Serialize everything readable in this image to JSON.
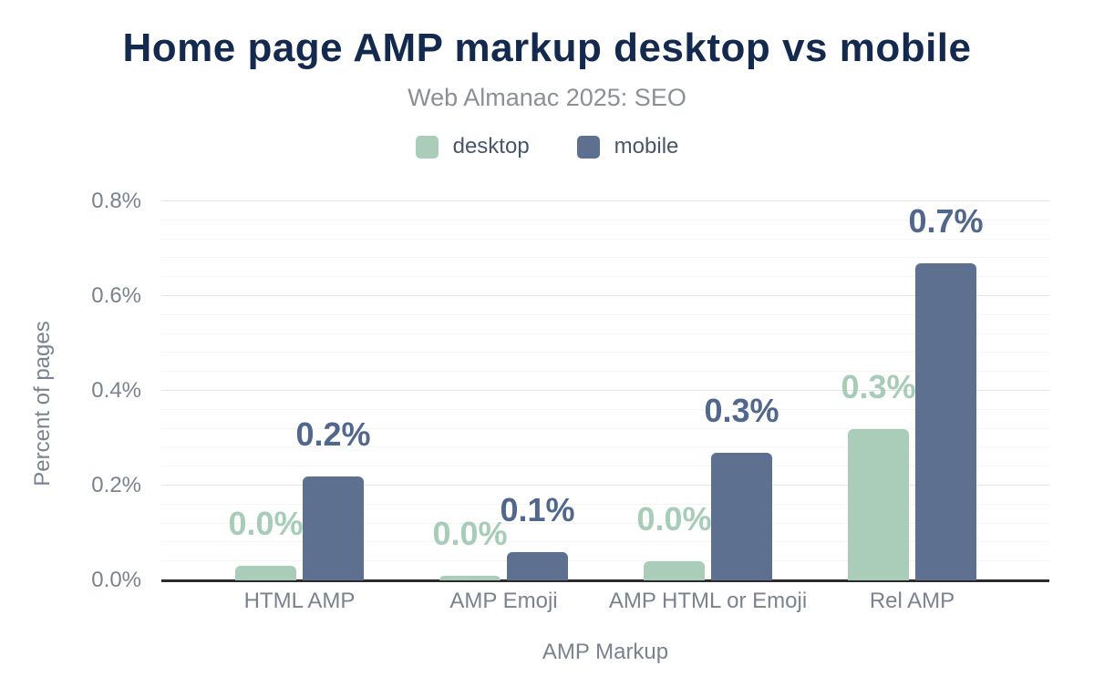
{
  "chart_data": {
    "type": "bar",
    "title": "Home page AMP markup desktop vs mobile",
    "subtitle": "Web Almanac 2025: SEO",
    "xlabel": "AMP Markup",
    "ylabel": "Percent of pages",
    "categories": [
      "HTML AMP",
      "AMP Emoji",
      "AMP HTML or Emoji",
      "Rel AMP"
    ],
    "series": [
      {
        "name": "desktop",
        "color": "#aacdb9",
        "label_color": "#a7ccb8",
        "values": [
          0.03,
          0.01,
          0.04,
          0.32
        ],
        "value_labels": [
          "0.0%",
          "0.0%",
          "0.0%",
          "0.3%"
        ]
      },
      {
        "name": "mobile",
        "color": "#5d7090",
        "label_color": "#52678d",
        "values": [
          0.22,
          0.06,
          0.27,
          0.67
        ],
        "value_labels": [
          "0.2%",
          "0.1%",
          "0.3%",
          "0.7%"
        ]
      }
    ],
    "ylim": [
      0,
      0.8
    ],
    "y_ticks": [
      {
        "value": 0.0,
        "label": "0.0%"
      },
      {
        "value": 0.2,
        "label": "0.2%"
      },
      {
        "value": 0.4,
        "label": "0.4%"
      },
      {
        "value": 0.6,
        "label": "0.6%"
      },
      {
        "value": 0.8,
        "label": "0.8%"
      }
    ],
    "minor_grid_step": 0.04,
    "major_grid_step": 0.2,
    "grid": true,
    "legend_position": "top",
    "unit": "%"
  },
  "colors": {
    "background": "#ffffff",
    "title": "#14294e",
    "subtitle": "#8b9098",
    "legend_text": "#47566c",
    "axis_text": "#7b828f",
    "grid_major": "#e4e4e4",
    "grid_minor": "#f5f5f5",
    "axis_line": "#2b2b2b"
  }
}
